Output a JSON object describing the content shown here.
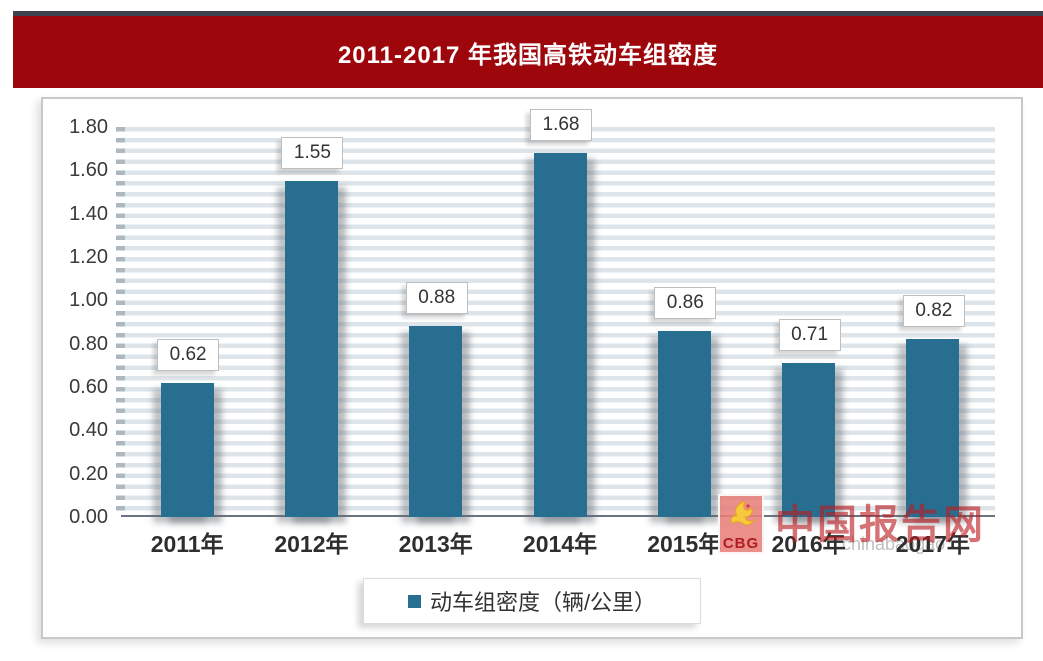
{
  "banner": {
    "title": "2011-2017 年我国高铁动车组密度",
    "bg_color": "#9D070C",
    "strip_color": "#3D424D",
    "text_color": "#FFFFFF"
  },
  "chart_data": {
    "type": "bar",
    "title": "2011-2017 年我国高铁动车组密度",
    "categories": [
      "2011年",
      "2012年",
      "2013年",
      "2014年",
      "2015年",
      "2016年",
      "2017年"
    ],
    "values": [
      0.62,
      1.55,
      0.88,
      1.68,
      0.86,
      0.71,
      0.82
    ],
    "data_labels": [
      "0.62",
      "1.55",
      "0.88",
      "1.68",
      "0.86",
      "0.71",
      "0.82"
    ],
    "series_name": "动车组密度（辆/公里）",
    "xlabel": "",
    "ylabel": "",
    "ylim": [
      0,
      1.8
    ],
    "ytick_step": 0.2,
    "ytick_labels": [
      "0.00",
      "0.20",
      "0.40",
      "0.60",
      "0.80",
      "1.00",
      "1.20",
      "1.40",
      "1.60",
      "1.80"
    ],
    "bar_color": "#276E90",
    "grid": "minor horizontal bands every 0.05",
    "legend_position": "bottom-center",
    "data_label_style": "boxed above bar"
  },
  "legend": {
    "marker_color": "#276E90",
    "label": "动车组密度（辆/公里）"
  },
  "watermark": {
    "logo_text": "CBG",
    "site_name": "中国报告网",
    "url_text": "chinabaogao"
  }
}
